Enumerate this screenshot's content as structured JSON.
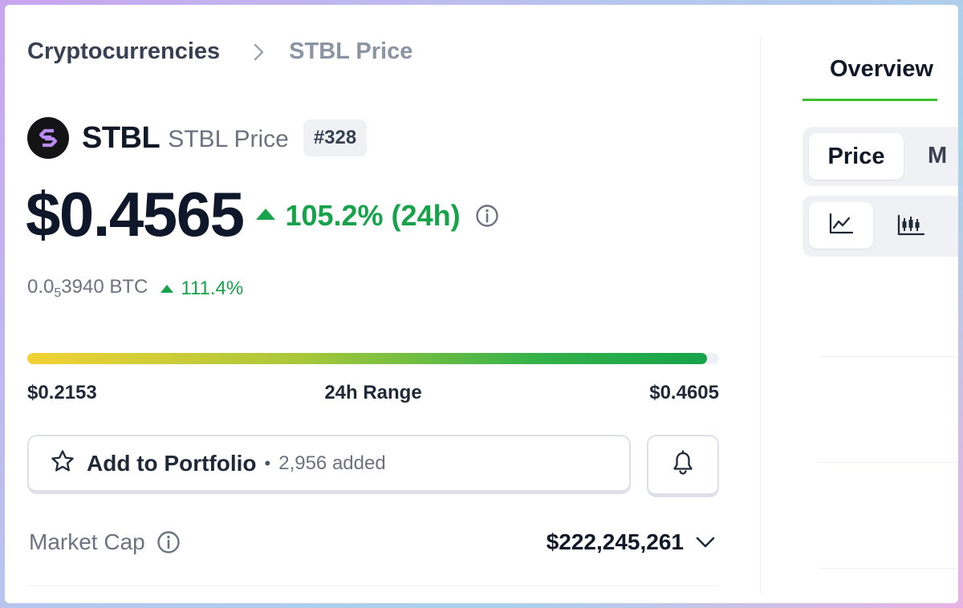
{
  "breadcrumb": {
    "parent": "Cryptocurrencies",
    "current": "STBL Price"
  },
  "coin": {
    "symbol": "STBL",
    "name": "STBL Price",
    "rank": "#328",
    "logo_icon": "stbl-logo-icon"
  },
  "price": {
    "usd": "$0.4565",
    "change_24h": "105.2% (24h)"
  },
  "btc": {
    "prefix": "0.0",
    "zeros": "5",
    "rest": "3940 BTC",
    "change": "111.4%"
  },
  "range": {
    "low": "$0.2153",
    "label": "24h Range",
    "high": "$0.4605",
    "position_fraction": 0.983
  },
  "portfolio": {
    "label": "Add to Portfolio",
    "separator": "•",
    "count": "2,956 added"
  },
  "market_cap": {
    "label": "Market Cap",
    "value": "$222,245,261"
  },
  "right_panel": {
    "tab_overview": "Overview",
    "view_tabs": [
      "Price",
      "M"
    ],
    "chart_types": [
      "line-chart-icon",
      "candlestick-chart-icon"
    ]
  },
  "colors": {
    "positive": "#16a34a",
    "tab_underline": "#3fbf32",
    "logo_accent": "#b98cf5"
  }
}
